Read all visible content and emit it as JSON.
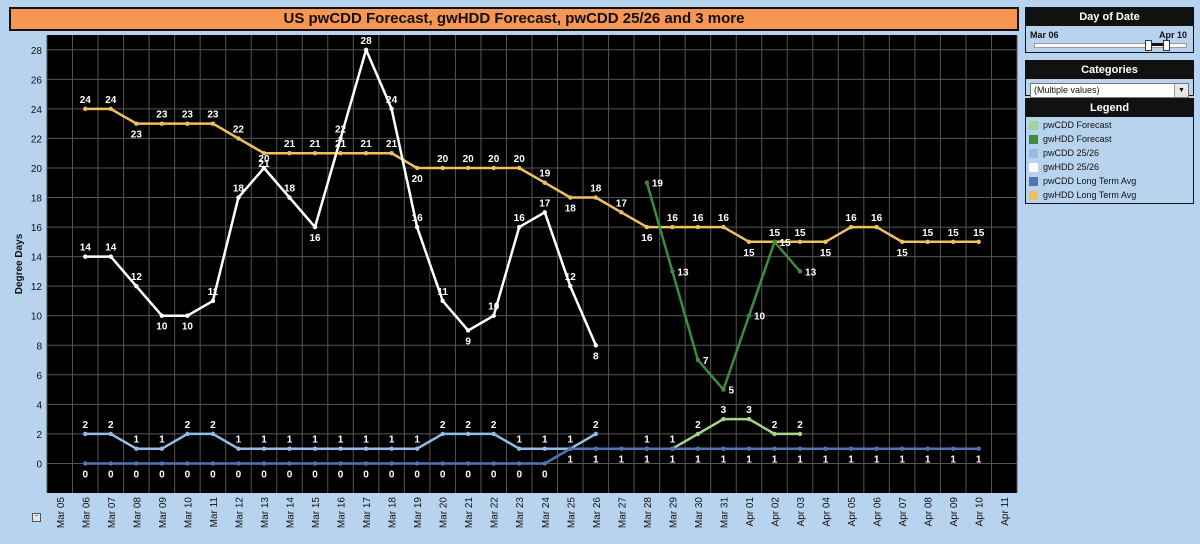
{
  "title": "US pwCDD Forecast, gwHDD Forecast, pwCDD 25/26 and 3 more",
  "filters": {
    "date": {
      "heading": "Day of Date",
      "start": "Mar 06",
      "end": "Apr 10"
    },
    "categories": {
      "heading": "Categories",
      "value": "(Multiple values)"
    }
  },
  "legend": {
    "heading": "Legend",
    "items": [
      {
        "label": "pwCDD Forecast",
        "color": "#a3d68c"
      },
      {
        "label": "gwHDD Forecast",
        "color": "#3d8b3d"
      },
      {
        "label": "pwCDD 25/26",
        "color": "#94bde6"
      },
      {
        "label": "gwHDD 25/26",
        "color": "#ffffff"
      },
      {
        "label": "pwCDD Long Term Avg",
        "color": "#4c77b3"
      },
      {
        "label": "gwHDD Long Term Avg",
        "color": "#f0c060"
      }
    ]
  },
  "chart_data": {
    "type": "line",
    "title": "US pwCDD Forecast, gwHDD Forecast, pwCDD 25/26 and 3 more",
    "xlabel": "",
    "ylabel": "Degree Days",
    "ylim": [
      -2,
      29
    ],
    "yticks": [
      0,
      2,
      4,
      6,
      8,
      10,
      12,
      14,
      16,
      18,
      20,
      22,
      24,
      26,
      28
    ],
    "categories": [
      "Mar 05",
      "Mar 06",
      "Mar 07",
      "Mar 08",
      "Mar 09",
      "Mar 10",
      "Mar 11",
      "Mar 12",
      "Mar 13",
      "Mar 14",
      "Mar 15",
      "Mar 16",
      "Mar 17",
      "Mar 18",
      "Mar 19",
      "Mar 20",
      "Mar 21",
      "Mar 22",
      "Mar 23",
      "Mar 24",
      "Mar 25",
      "Mar 26",
      "Mar 27",
      "Mar 28",
      "Mar 29",
      "Mar 30",
      "Mar 31",
      "Apr 01",
      "Apr 02",
      "Apr 03",
      "Apr 04",
      "Apr 05",
      "Apr 06",
      "Apr 07",
      "Apr 08",
      "Apr 09",
      "Apr 10",
      "Apr 11"
    ],
    "series": [
      {
        "name": "gwHDD Long Term Avg",
        "color": "#f0c060",
        "labels": "mixed",
        "values": [
          null,
          24,
          24,
          23,
          23,
          23,
          23,
          22,
          21,
          21,
          21,
          21,
          21,
          21,
          20,
          20,
          20,
          20,
          20,
          19,
          18,
          18,
          17,
          16,
          16,
          16,
          16,
          15,
          15,
          15,
          15,
          16,
          16,
          15,
          15,
          15,
          15,
          null
        ]
      },
      {
        "name": "gwHDD 25/26",
        "color": "#ffffff",
        "labels": "mixed",
        "values": [
          null,
          14,
          14,
          12,
          10,
          10,
          11,
          18,
          20,
          18,
          16,
          22,
          28,
          24,
          16,
          11,
          9,
          10,
          16,
          17,
          12,
          8,
          null,
          null,
          null,
          null,
          null,
          null,
          null,
          null,
          null,
          null,
          null,
          null,
          null,
          null,
          null,
          null
        ]
      },
      {
        "name": "gwHDD Forecast",
        "color": "#3d8b3d",
        "labels": "right",
        "values": [
          null,
          null,
          null,
          null,
          null,
          null,
          null,
          null,
          null,
          null,
          null,
          null,
          null,
          null,
          null,
          null,
          null,
          null,
          null,
          null,
          null,
          null,
          null,
          19,
          13,
          7,
          5,
          10,
          15,
          13,
          null,
          null,
          null,
          null,
          null,
          null,
          null,
          null
        ]
      },
      {
        "name": "pwCDD 25/26",
        "color": "#94bde6",
        "labels": "above",
        "values": [
          null,
          2,
          2,
          1,
          1,
          2,
          2,
          1,
          1,
          1,
          1,
          1,
          1,
          1,
          1,
          2,
          2,
          2,
          1,
          1,
          1,
          2,
          null,
          null,
          null,
          null,
          null,
          null,
          null,
          null,
          null,
          null,
          null,
          null,
          null,
          null,
          null,
          null
        ]
      },
      {
        "name": "pwCDD Forecast",
        "color": "#a3d68c",
        "labels": "above",
        "values": [
          null,
          null,
          null,
          null,
          null,
          null,
          null,
          null,
          null,
          null,
          null,
          null,
          null,
          null,
          null,
          null,
          null,
          null,
          null,
          null,
          null,
          null,
          null,
          1,
          1,
          2,
          3,
          3,
          2,
          2,
          null,
          null,
          null,
          null,
          null,
          null,
          null,
          null
        ]
      },
      {
        "name": "pwCDD Long Term Avg",
        "color": "#4c77b3",
        "labels": "below",
        "values": [
          null,
          0,
          0,
          0,
          0,
          0,
          0,
          0,
          0,
          0,
          0,
          0,
          0,
          0,
          0,
          0,
          0,
          0,
          0,
          0,
          1,
          1,
          1,
          1,
          1,
          1,
          1,
          1,
          1,
          1,
          1,
          1,
          1,
          1,
          1,
          1,
          1,
          null
        ]
      }
    ]
  }
}
